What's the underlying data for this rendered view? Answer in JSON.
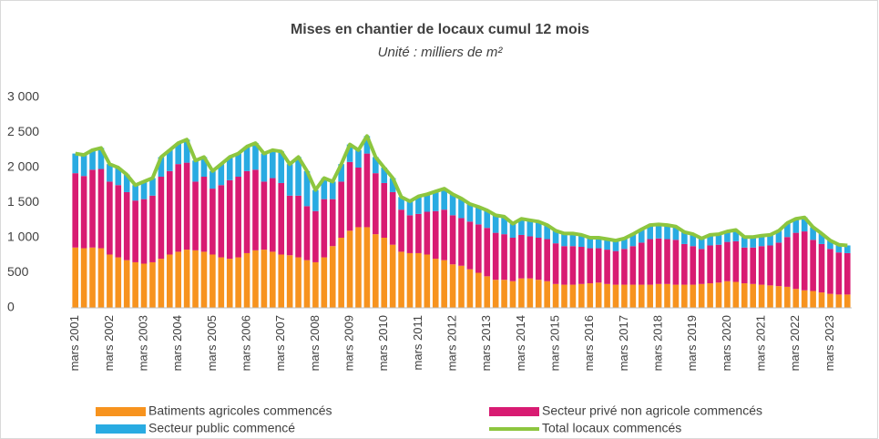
{
  "chart_data": {
    "type": "stacked_bar_line",
    "title": "Mises en chantier de locaux cumul 12 mois",
    "subtitle": "Unité : milliers de m²",
    "categories": [
      "mars 2001",
      null,
      null,
      null,
      "mars 2002",
      null,
      null,
      null,
      "mars 2003",
      null,
      null,
      null,
      "mars 2004",
      null,
      null,
      null,
      "mars 2005",
      null,
      null,
      null,
      "mars 2006",
      null,
      null,
      null,
      "mars 2007",
      null,
      null,
      null,
      "mars 2008",
      null,
      null,
      null,
      "mars 2009",
      null,
      null,
      null,
      "mars 2010",
      null,
      null,
      null,
      "mars 2011",
      null,
      null,
      null,
      "mars 2012",
      null,
      null,
      null,
      "mars 2013",
      null,
      null,
      null,
      "mars 2014",
      null,
      null,
      null,
      "mars 2015",
      null,
      null,
      null,
      "mars 2016",
      null,
      null,
      null,
      "mars 2017",
      null,
      null,
      null,
      "mars 2018",
      null,
      null,
      null,
      "mars 2019",
      null,
      null,
      null,
      "mars 2020",
      null,
      null,
      null,
      "mars 2021",
      null,
      null,
      null,
      "mars 2022",
      null,
      null,
      null,
      "mars 2023",
      null,
      null
    ],
    "series": [
      {
        "name": "Batiments agricoles commencés",
        "color": "#f7931e",
        "kind": "bar",
        "values": [
          860,
          850,
          860,
          850,
          760,
          720,
          680,
          650,
          630,
          650,
          700,
          760,
          800,
          830,
          820,
          800,
          760,
          720,
          700,
          720,
          780,
          820,
          830,
          800,
          760,
          750,
          720,
          680,
          650,
          720,
          880,
          1000,
          1100,
          1150,
          1150,
          1050,
          1000,
          900,
          800,
          780,
          780,
          760,
          700,
          680,
          620,
          600,
          550,
          500,
          450,
          400,
          400,
          380,
          420,
          420,
          400,
          380,
          340,
          330,
          330,
          340,
          350,
          360,
          340,
          330,
          330,
          330,
          330,
          330,
          340,
          340,
          330,
          330,
          330,
          340,
          350,
          360,
          380,
          370,
          350,
          340,
          330,
          320,
          310,
          300,
          270,
          250,
          240,
          220,
          200,
          190,
          190
        ]
      },
      {
        "name": "Secteur privé non agricole commencés",
        "color": "#d81b72",
        "kind": "bar",
        "values": [
          1060,
          1030,
          1110,
          1130,
          1040,
          1030,
          970,
          880,
          920,
          950,
          1170,
          1190,
          1250,
          1240,
          980,
          1070,
          940,
          1030,
          1120,
          1150,
          1170,
          1150,
          970,
          1050,
          1020,
          850,
          880,
          770,
          730,
          830,
          670,
          800,
          980,
          850,
          1050,
          870,
          780,
          750,
          600,
          540,
          560,
          610,
          680,
          720,
          700,
          680,
          680,
          690,
          690,
          670,
          650,
          620,
          620,
          600,
          600,
          600,
          580,
          550,
          550,
          530,
          500,
          490,
          490,
          480,
          510,
          550,
          600,
          650,
          650,
          640,
          640,
          580,
          550,
          500,
          540,
          540,
          560,
          580,
          510,
          520,
          550,
          570,
          620,
          710,
          800,
          840,
          730,
          690,
          640,
          600,
          590
        ]
      },
      {
        "name": "Secteur public commencé",
        "color": "#29abe2",
        "kind": "bar",
        "values": [
          280,
          300,
          280,
          300,
          250,
          250,
          250,
          220,
          250,
          250,
          280,
          300,
          300,
          330,
          300,
          280,
          250,
          300,
          330,
          330,
          350,
          380,
          400,
          400,
          450,
          450,
          550,
          500,
          300,
          300,
          250,
          250,
          250,
          250,
          250,
          230,
          220,
          200,
          180,
          200,
          250,
          250,
          280,
          300,
          300,
          280,
          250,
          250,
          250,
          250,
          250,
          200,
          230,
          230,
          230,
          200,
          180,
          180,
          180,
          170,
          150,
          150,
          150,
          150,
          150,
          170,
          190,
          200,
          200,
          200,
          190,
          170,
          170,
          150,
          150,
          150,
          150,
          160,
          150,
          150,
          150,
          150,
          170,
          200,
          200,
          200,
          180,
          150,
          120,
          110,
          110
        ]
      },
      {
        "name": "Total locaux commencés",
        "color": "#8dc63f",
        "kind": "line",
        "values": [
          2200,
          2180,
          2250,
          2280,
          2050,
          2000,
          1900,
          1750,
          1800,
          1850,
          2150,
          2250,
          2350,
          2400,
          2100,
          2150,
          1950,
          2050,
          2150,
          2200,
          2300,
          2350,
          2200,
          2250,
          2230,
          2050,
          2150,
          1950,
          1680,
          1850,
          1800,
          2050,
          2330,
          2250,
          2450,
          2150,
          2000,
          1850,
          1580,
          1520,
          1590,
          1620,
          1660,
          1700,
          1620,
          1560,
          1480,
          1440,
          1390,
          1320,
          1300,
          1200,
          1270,
          1250,
          1230,
          1180,
          1100,
          1060,
          1060,
          1040,
          1000,
          1000,
          980,
          960,
          990,
          1050,
          1120,
          1180,
          1190,
          1180,
          1160,
          1080,
          1050,
          990,
          1040,
          1050,
          1090,
          1110,
          1010,
          1010,
          1030,
          1040,
          1100,
          1210,
          1270,
          1290,
          1150,
          1060,
          960,
          900,
          890
        ]
      }
    ],
    "ylim": [
      0,
      3000
    ],
    "yticks": [
      0,
      500,
      {
        "value": 1000,
        "label": "1 000"
      },
      {
        "value": 1500,
        "label": "1 500"
      },
      {
        "value": 2000,
        "label": "2 000"
      },
      {
        "value": 2500,
        "label": "2 500"
      },
      {
        "value": 3000,
        "label": "3 000"
      }
    ],
    "grid": false
  }
}
